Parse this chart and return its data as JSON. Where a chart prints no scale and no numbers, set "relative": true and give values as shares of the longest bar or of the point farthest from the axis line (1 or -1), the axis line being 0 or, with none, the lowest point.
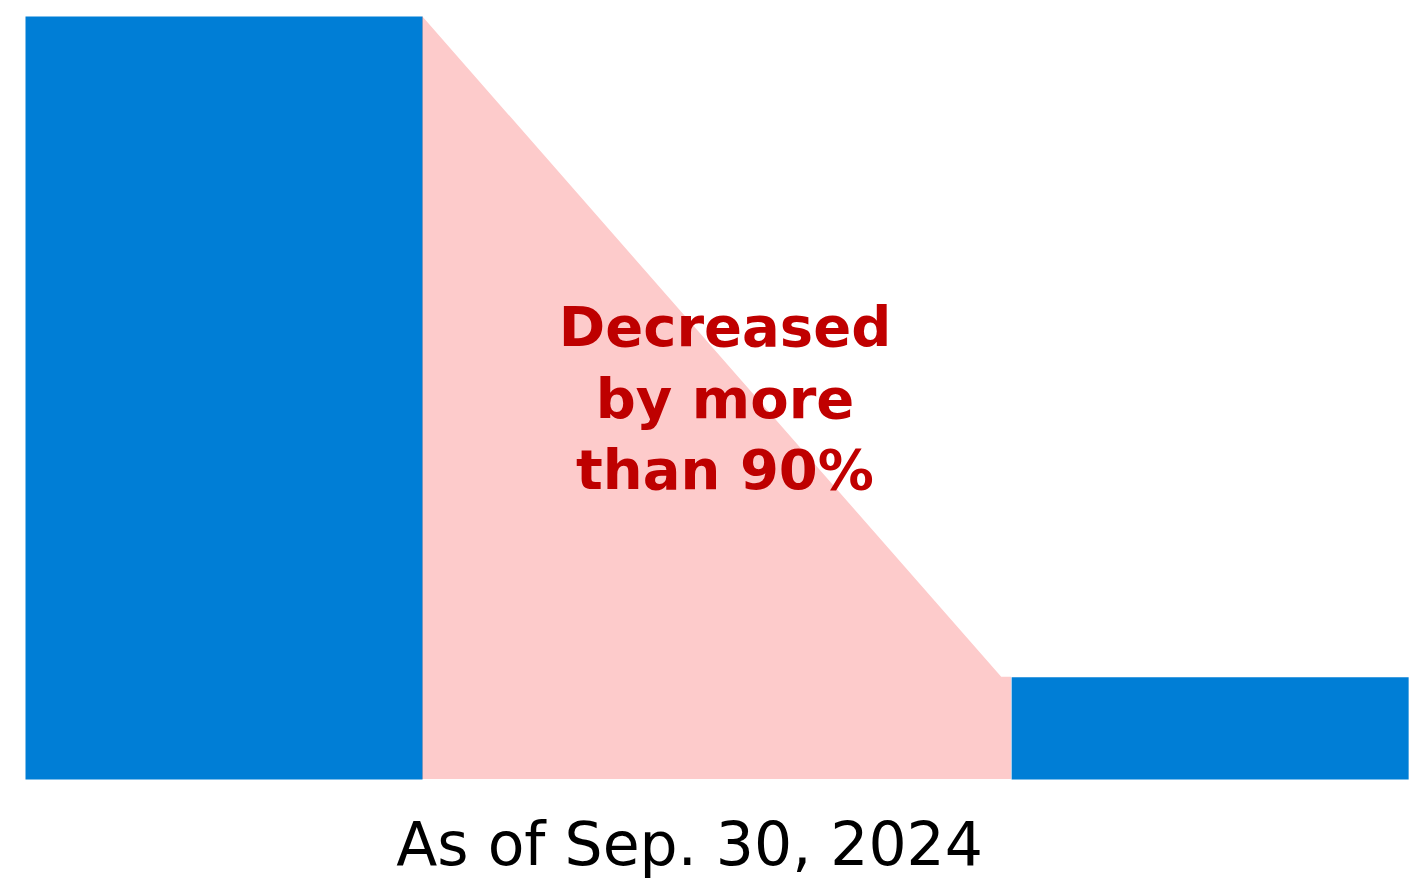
{
  "chart_data": {
    "type": "bar",
    "relative": true,
    "categories": [
      null,
      null
    ],
    "values": [
      1,
      0.134
    ],
    "color": "#007ed6",
    "annotations": [
      "Decreased\nby more\nthan 90%",
      "As of Sep. 30, 2024"
    ]
  }
}
